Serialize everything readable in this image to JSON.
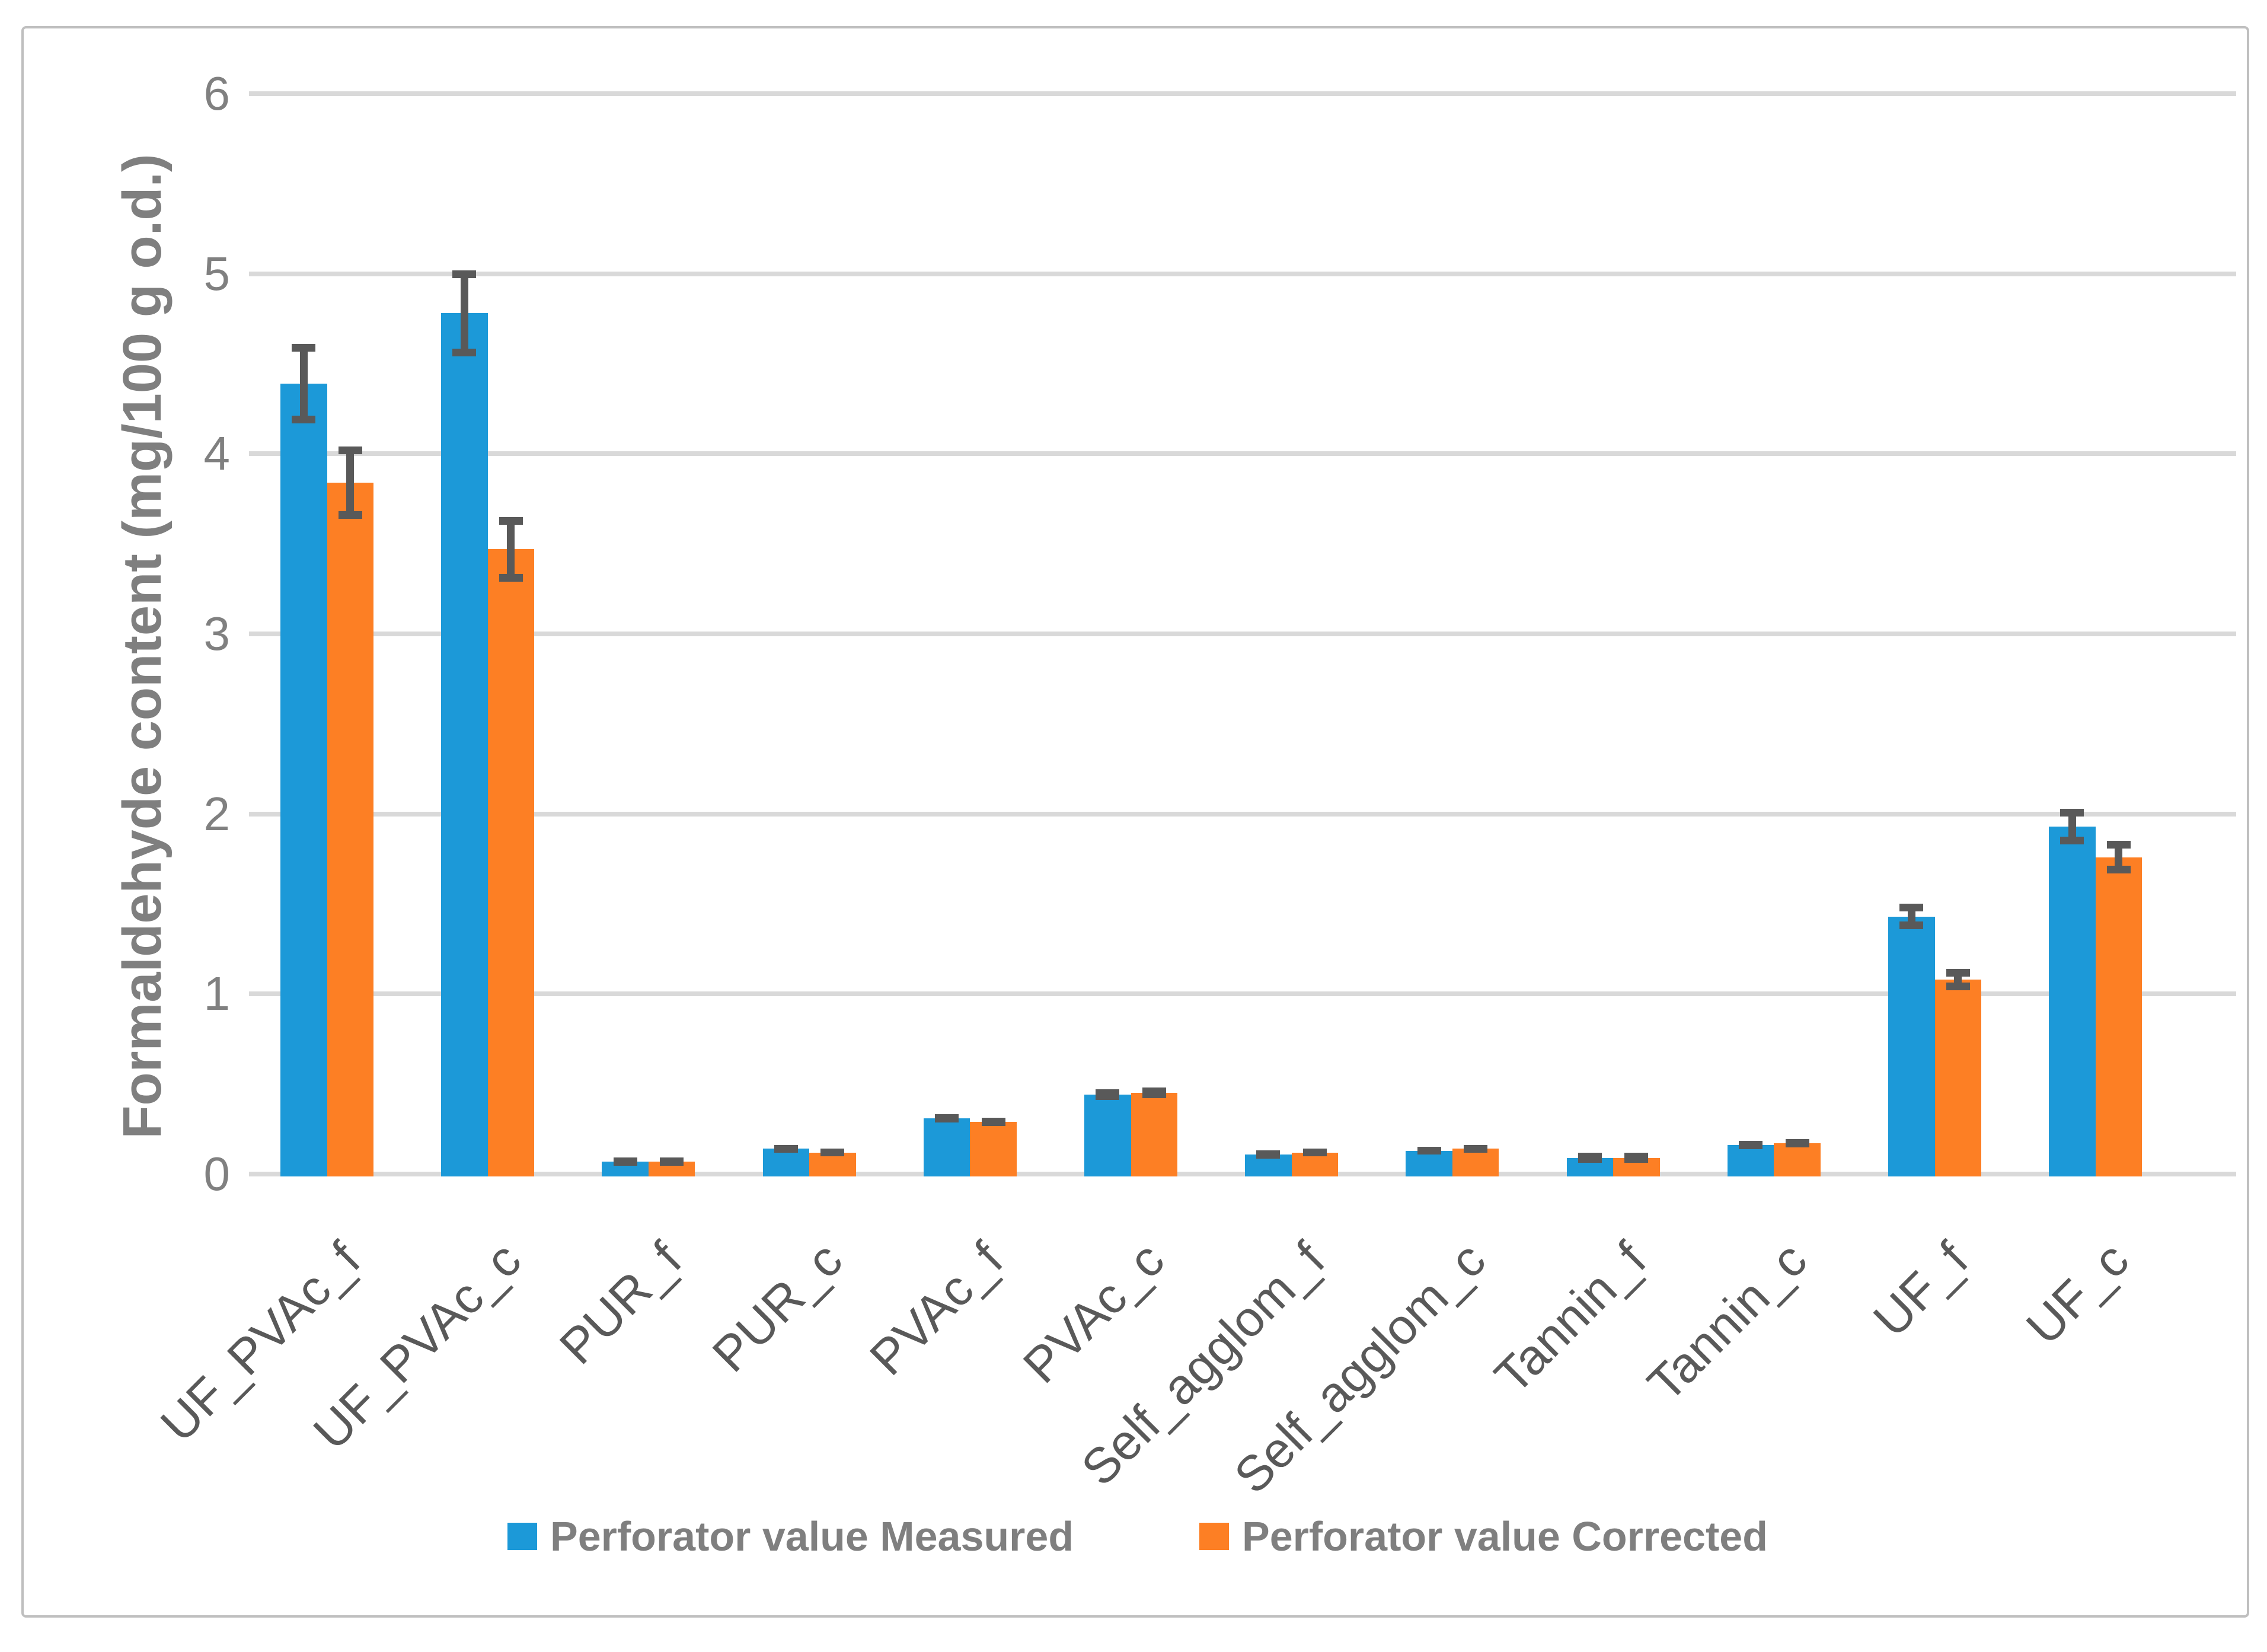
{
  "figure": {
    "border_color": "#bfbfbf",
    "background": "#ffffff"
  },
  "colors": {
    "measured": "#1c99d8",
    "corrected": "#fd7f24",
    "gridline": "#d9d9d9",
    "error_bar": "#595959",
    "y_tick_text": "#808080",
    "x_label_text": "#595959",
    "axis_title_text": "#7f7f7f",
    "legend_text": "#7f7f7f"
  },
  "chart_data": {
    "type": "bar",
    "title": "",
    "xlabel": "",
    "ylabel": "Formaldehyde content (mg/100 g o.d.)",
    "ylim": [
      0,
      6
    ],
    "yticks": [
      0,
      1,
      2,
      3,
      4,
      5,
      6
    ],
    "grid": true,
    "legend_position": "bottom",
    "categories": [
      "UF_PVAc_f",
      "UF_PVAc_c",
      "PUR_f",
      "PUR_c",
      "PVAc_f",
      "PVAc_c",
      "Self_agglom_f",
      "Self_agglom_c",
      "Tannin_f",
      "Tannin_c",
      "UF_f",
      "UF_c"
    ],
    "series": [
      {
        "name": "Perforator value Measured",
        "color": "#1c99d8",
        "values": [
          4.39,
          4.78,
          0.07,
          0.14,
          0.31,
          0.44,
          0.11,
          0.13,
          0.09,
          0.16,
          1.43,
          1.93
        ],
        "errors": [
          0.22,
          0.24,
          0.02,
          0.02,
          0.02,
          0.03,
          0.02,
          0.02,
          0.015,
          0.02,
          0.07,
          0.1
        ]
      },
      {
        "name": "Perforator value Corrected",
        "color": "#fd7f24",
        "values": [
          3.84,
          3.47,
          0.07,
          0.12,
          0.29,
          0.45,
          0.12,
          0.14,
          0.09,
          0.17,
          1.08,
          1.76
        ],
        "errors": [
          0.2,
          0.18,
          0.02,
          0.02,
          0.02,
          0.03,
          0.02,
          0.02,
          0.015,
          0.02,
          0.06,
          0.09
        ]
      }
    ]
  },
  "legend": {
    "measured_label": "Perforator value Measured",
    "corrected_label": "Perforator value Corrected"
  }
}
